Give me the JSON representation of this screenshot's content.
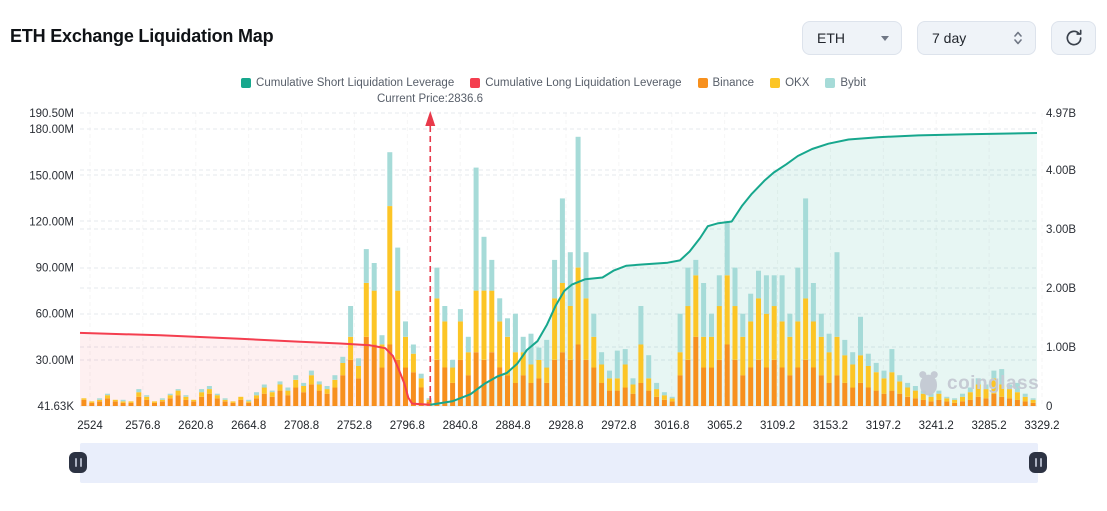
{
  "header": {
    "title": "ETH Exchange Liquidation Map"
  },
  "controls": {
    "symbol": {
      "value": "ETH"
    },
    "period": {
      "value": "7 day"
    }
  },
  "watermark": {
    "text": "coinglass"
  },
  "chart_data": {
    "type": "bar",
    "subtype": "stacked bars with dual-axis cumulative area lines",
    "title": "ETH Exchange Liquidation Map",
    "legend_position": "top-center",
    "grid": "dashed",
    "annotation": {
      "label": "Current Price:2836.6",
      "price": 2836.6,
      "t": 0.366
    },
    "x_axis": {
      "tick_labels": [
        "2524",
        "2576.8",
        "2620.8",
        "2664.8",
        "2708.8",
        "2752.8",
        "2796.8",
        "2840.8",
        "2884.8",
        "2928.8",
        "2972.8",
        "3016.8",
        "3065.2",
        "3109.2",
        "3153.2",
        "3197.2",
        "3241.2",
        "3285.2",
        "3329.2"
      ]
    },
    "left_axis": {
      "unit": "M",
      "max": 190.5,
      "ticks": [
        {
          "label": "190.50M",
          "value": 190.5
        },
        {
          "label": "180.00M",
          "value": 180
        },
        {
          "label": "150.00M",
          "value": 150
        },
        {
          "label": "120.00M",
          "value": 120
        },
        {
          "label": "90.00M",
          "value": 90
        },
        {
          "label": "60.00M",
          "value": 60
        },
        {
          "label": "30.00M",
          "value": 30
        },
        {
          "label": "41.63K",
          "value": 0.04
        }
      ]
    },
    "right_axis": {
      "unit": "B",
      "max": 4.97,
      "ticks": [
        {
          "label": "4.97B",
          "value": 4.97
        },
        {
          "label": "4.00B",
          "value": 4
        },
        {
          "label": "3.00B",
          "value": 3
        },
        {
          "label": "2.00B",
          "value": 2
        },
        {
          "label": "1.00B",
          "value": 1
        },
        {
          "label": "0",
          "value": 0
        }
      ]
    },
    "legend": [
      {
        "label": "Cumulative Short Liquidation Leverage",
        "color": "#17a78d"
      },
      {
        "label": "Cumulative Long Liquidation Leverage",
        "color": "#f43e4f"
      },
      {
        "label": "Binance",
        "color": "#f7901e"
      },
      {
        "label": "OKX",
        "color": "#fcc526"
      },
      {
        "label": "Bybit",
        "color": "#a6dbd8"
      }
    ],
    "colors": {
      "binance": "#f7901e",
      "okx": "#fcc526",
      "bybit": "#a6dbd8",
      "short": "#17a78d",
      "long": "#f43e4f",
      "short_fill": "rgba(23,167,141,0.10)",
      "long_fill": "rgba(244,62,79,0.08)",
      "grid": "#e5e8ee",
      "annotation": "#e8394a"
    },
    "bars": {
      "series_names": [
        "Binance",
        "OKX",
        "Bybit"
      ],
      "unit": "M",
      "values": [
        [
          4,
          1,
          0
        ],
        [
          2,
          1,
          0
        ],
        [
          3,
          1,
          1
        ],
        [
          5,
          2,
          1
        ],
        [
          3,
          1,
          0
        ],
        [
          2,
          1,
          1
        ],
        [
          2,
          1,
          0
        ],
        [
          6,
          3,
          2
        ],
        [
          4,
          2,
          1
        ],
        [
          2,
          1,
          0
        ],
        [
          3,
          1,
          1
        ],
        [
          5,
          2,
          1
        ],
        [
          7,
          3,
          1
        ],
        [
          4,
          2,
          1
        ],
        [
          3,
          1,
          0
        ],
        [
          6,
          3,
          2
        ],
        [
          8,
          3,
          2
        ],
        [
          5,
          2,
          1
        ],
        [
          3,
          1,
          1
        ],
        [
          2,
          1,
          0
        ],
        [
          4,
          2,
          0
        ],
        [
          2,
          1,
          1
        ],
        [
          5,
          2,
          2
        ],
        [
          8,
          4,
          2
        ],
        [
          6,
          3,
          1
        ],
        [
          10,
          4,
          2
        ],
        [
          7,
          3,
          2
        ],
        [
          12,
          5,
          3
        ],
        [
          9,
          4,
          2
        ],
        [
          14,
          6,
          3
        ],
        [
          10,
          4,
          2
        ],
        [
          8,
          3,
          2
        ],
        [
          12,
          5,
          3
        ],
        [
          20,
          8,
          4
        ],
        [
          30,
          15,
          20
        ],
        [
          18,
          8,
          5
        ],
        [
          45,
          35,
          22
        ],
        [
          40,
          35,
          18
        ],
        [
          25,
          15,
          6
        ],
        [
          40,
          90,
          35
        ],
        [
          30,
          45,
          28
        ],
        [
          25,
          20,
          10
        ],
        [
          22,
          12,
          6
        ],
        [
          12,
          6,
          3
        ],
        [
          3,
          1,
          1
        ],
        [
          30,
          40,
          20
        ],
        [
          25,
          30,
          10
        ],
        [
          15,
          10,
          5
        ],
        [
          30,
          25,
          8
        ],
        [
          20,
          15,
          10
        ],
        [
          35,
          40,
          80
        ],
        [
          30,
          45,
          35
        ],
        [
          35,
          40,
          20
        ],
        [
          25,
          30,
          15
        ],
        [
          20,
          25,
          12
        ],
        [
          15,
          20,
          25
        ],
        [
          20,
          15,
          10
        ],
        [
          15,
          12,
          20
        ],
        [
          18,
          12,
          8
        ],
        [
          15,
          10,
          18
        ],
        [
          30,
          40,
          25
        ],
        [
          35,
          45,
          55
        ],
        [
          30,
          35,
          35
        ],
        [
          40,
          50,
          85
        ],
        [
          30,
          40,
          30
        ],
        [
          25,
          20,
          15
        ],
        [
          15,
          12,
          8
        ],
        [
          10,
          8,
          5
        ],
        [
          10,
          8,
          18
        ],
        [
          12,
          15,
          10
        ],
        [
          8,
          6,
          4
        ],
        [
          15,
          25,
          25
        ],
        [
          10,
          8,
          15
        ],
        [
          6,
          5,
          4
        ],
        [
          4,
          3,
          2
        ],
        [
          3,
          2,
          1
        ],
        [
          20,
          15,
          25
        ],
        [
          30,
          35,
          25
        ],
        [
          45,
          40,
          10
        ],
        [
          25,
          20,
          35
        ],
        [
          25,
          20,
          15
        ],
        [
          30,
          35,
          20
        ],
        [
          40,
          45,
          35
        ],
        [
          30,
          35,
          25
        ],
        [
          20,
          25,
          15
        ],
        [
          25,
          30,
          18
        ],
        [
          30,
          40,
          18
        ],
        [
          25,
          35,
          25
        ],
        [
          30,
          35,
          20
        ],
        [
          25,
          30,
          30
        ],
        [
          20,
          25,
          15
        ],
        [
          25,
          30,
          35
        ],
        [
          30,
          40,
          65
        ],
        [
          25,
          30,
          25
        ],
        [
          20,
          25,
          15
        ],
        [
          15,
          20,
          12
        ],
        [
          20,
          25,
          55
        ],
        [
          15,
          18,
          10
        ],
        [
          12,
          15,
          8
        ],
        [
          15,
          18,
          25
        ],
        [
          12,
          14,
          8
        ],
        [
          10,
          12,
          6
        ],
        [
          8,
          10,
          5
        ],
        [
          10,
          12,
          15
        ],
        [
          8,
          8,
          4
        ],
        [
          6,
          6,
          3
        ],
        [
          5,
          5,
          3
        ],
        [
          4,
          4,
          2
        ],
        [
          3,
          3,
          2
        ],
        [
          4,
          4,
          2
        ],
        [
          3,
          2,
          1
        ],
        [
          2,
          2,
          1
        ],
        [
          3,
          3,
          2
        ],
        [
          4,
          5,
          3
        ],
        [
          6,
          8,
          4
        ],
        [
          5,
          6,
          3
        ],
        [
          8,
          10,
          5
        ],
        [
          6,
          8,
          10
        ],
        [
          5,
          6,
          3
        ],
        [
          4,
          5,
          6
        ],
        [
          3,
          3,
          2
        ],
        [
          2,
          2,
          1
        ]
      ]
    },
    "long_line": {
      "name": "Cumulative Long Liquidation Leverage",
      "unit": "B",
      "points": [
        [
          0,
          1.24
        ],
        [
          0.084,
          1.2
        ],
        [
          0.167,
          1.14
        ],
        [
          0.23,
          1.09
        ],
        [
          0.272,
          1.06
        ],
        [
          0.303,
          1.03
        ],
        [
          0.319,
          0.98
        ],
        [
          0.327,
          0.85
        ],
        [
          0.333,
          0.62
        ],
        [
          0.339,
          0.38
        ],
        [
          0.343,
          0.14
        ],
        [
          0.347,
          0.04
        ],
        [
          0.366,
          0.02
        ]
      ]
    },
    "short_line": {
      "name": "Cumulative Short Liquidation Leverage",
      "unit": "B",
      "points": [
        [
          0.366,
          0.02
        ],
        [
          0.389,
          0.08
        ],
        [
          0.408,
          0.2
        ],
        [
          0.423,
          0.38
        ],
        [
          0.436,
          0.5
        ],
        [
          0.446,
          0.56
        ],
        [
          0.457,
          0.72
        ],
        [
          0.467,
          0.95
        ],
        [
          0.478,
          1.1
        ],
        [
          0.488,
          1.38
        ],
        [
          0.497,
          1.7
        ],
        [
          0.506,
          1.95
        ],
        [
          0.514,
          2.06
        ],
        [
          0.528,
          2.15
        ],
        [
          0.546,
          2.18
        ],
        [
          0.558,
          2.3
        ],
        [
          0.571,
          2.38
        ],
        [
          0.587,
          2.4
        ],
        [
          0.614,
          2.43
        ],
        [
          0.627,
          2.47
        ],
        [
          0.637,
          2.62
        ],
        [
          0.648,
          2.85
        ],
        [
          0.656,
          3.05
        ],
        [
          0.667,
          3.1
        ],
        [
          0.681,
          3.13
        ],
        [
          0.692,
          3.4
        ],
        [
          0.702,
          3.6
        ],
        [
          0.715,
          3.82
        ],
        [
          0.725,
          3.96
        ],
        [
          0.738,
          4.1
        ],
        [
          0.75,
          4.24
        ],
        [
          0.765,
          4.36
        ],
        [
          0.782,
          4.45
        ],
        [
          0.803,
          4.52
        ],
        [
          0.834,
          4.56
        ],
        [
          0.876,
          4.59
        ],
        [
          0.928,
          4.61
        ],
        [
          1,
          4.63
        ]
      ]
    }
  }
}
